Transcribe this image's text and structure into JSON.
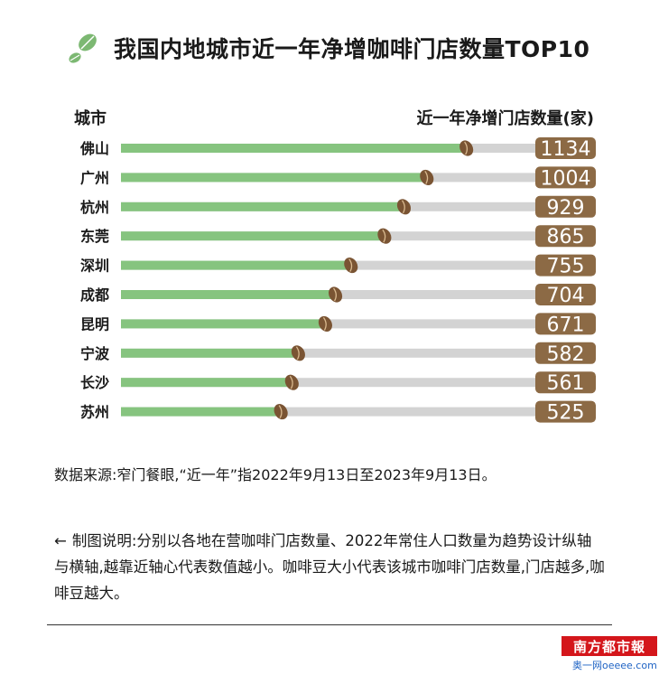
{
  "header": {
    "title": "我国内地城市近一年净增咖啡门店数量TOP10",
    "col_city": "城市",
    "col_value": "近一年净增门店数量(家)"
  },
  "footer": {
    "source": "数据来源:窄门餐眼,“近一年”指2022年9月13日至2023年9月13日。",
    "note_arrow": "←",
    "note": "制图说明:分别以各地在营咖啡门店数量、2022年常住人口数量为趋势设计纵轴与横轴,越靠近轴心代表数值越小。咖啡豆大小代表该城市咖啡门店数量,门店越多,咖啡豆越大。",
    "logo": "南方都市報",
    "watermark": "奥一网oeeee.com"
  },
  "colors": {
    "bar_fill": "#86c47f",
    "bar_track": "#d3d3d3",
    "bean": "#7a5433",
    "badge": "#8c6a45",
    "logo_red": "#d4161b"
  },
  "chart_data": {
    "type": "bar",
    "orientation": "horizontal",
    "categories": [
      "佛山",
      "广州",
      "杭州",
      "东莞",
      "深圳",
      "成都",
      "昆明",
      "宁波",
      "长沙",
      "苏州"
    ],
    "values": [
      1134,
      1004,
      929,
      865,
      755,
      704,
      671,
      582,
      561,
      525
    ],
    "xlim": [
      0,
      1550
    ],
    "grid": false,
    "legend": "none"
  }
}
